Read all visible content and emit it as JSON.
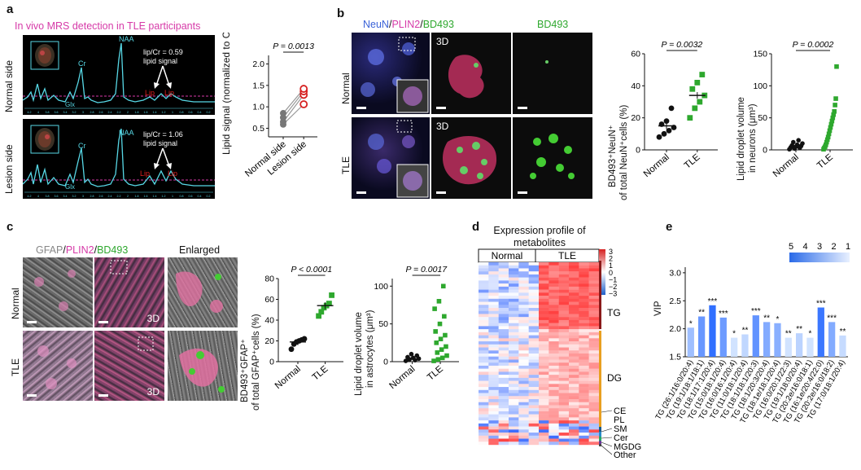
{
  "panel_labels": {
    "a": "a",
    "b": "b",
    "c": "c",
    "d": "d",
    "e": "e"
  },
  "colors": {
    "magenta": "#d63aa8",
    "green": "#2ea82e",
    "blue": "#3a62d8",
    "red": "#d81c1c",
    "cyan": "#57d8e6"
  },
  "panel_a": {
    "title": "In vivo MRS detection in TLE participants",
    "row_labels": [
      "Normal side",
      "Lesion side"
    ],
    "spectra": [
      {
        "ratio_text": "lip/Cr = 0.59",
        "signal_text": "lipid signal",
        "peak_labels": [
          "NAA",
          "Cr",
          "Glx"
        ],
        "lip_labels": [
          "Lip",
          "Lip"
        ]
      },
      {
        "ratio_text": "lip/Cr = 1.06",
        "signal_text": "lipid signal",
        "peak_labels": [
          "NAA",
          "Cr",
          "Glx"
        ],
        "lip_labels": [
          "Lip",
          "Lip"
        ]
      }
    ],
    "ppm_ticks": [
      "4.2",
      "4",
      "3.8",
      "3.6",
      "3.4",
      "3.2",
      "3",
      "2.8",
      "2.6",
      "2.4",
      "2.2",
      "2",
      "1.8",
      "1.6",
      "1.4",
      "1.2",
      "1",
      "0.8",
      "0.6",
      "0.4",
      "0.2"
    ]
  },
  "panel_a_plot": {
    "ylabel": "Lipid signal (normalized to Cr)",
    "p_text": "P = 0.0013",
    "categories": [
      "Normal side",
      "Lesion side"
    ],
    "yticks": [
      "0.5",
      "1.0",
      "1.5",
      "2.0"
    ]
  },
  "panel_b": {
    "stain_labels": [
      "NeuN",
      "/",
      "PLIN2",
      "/",
      "BD493"
    ],
    "bd493_label": "BD493",
    "row_labels": [
      "Normal",
      "TLE"
    ],
    "tag_3d": "3D",
    "plot1": {
      "ylabel_l1": "BD493⁺NeuN⁺",
      "ylabel_l2": "of total NeuN⁺cells (%)",
      "p_text": "P = 0.0032",
      "categories": [
        "Normal",
        "TLE"
      ],
      "yticks": [
        "0",
        "20",
        "40",
        "60"
      ]
    },
    "plot2": {
      "ylabel_l1": "Lipid droplet volume",
      "ylabel_l2": "in neurons (μm³)",
      "p_text": "P = 0.0002",
      "categories": [
        "Normal",
        "TLE"
      ],
      "yticks": [
        "0",
        "50",
        "100",
        "150"
      ]
    }
  },
  "panel_c": {
    "stain_labels": [
      "GFAP",
      "/",
      "PLIN2",
      "/",
      "BD493"
    ],
    "enlarged_label": "Enlarged",
    "row_labels": [
      "Normal",
      "TLE"
    ],
    "tag_3d": "3D",
    "plot1": {
      "ylabel_l1": "BD493⁺GFAP⁺",
      "ylabel_l2": "of total GFAP⁺cells (%)",
      "p_text": "P < 0.0001",
      "categories": [
        "Normal",
        "TLE"
      ],
      "yticks": [
        "0",
        "20",
        "40",
        "60",
        "80"
      ]
    },
    "plot2": {
      "ylabel_l1": "Lipid droplet volume",
      "ylabel_l2": "in astrocytes (μm³)",
      "p_text": "P = 0.0017",
      "categories": [
        "Normal",
        "TLE"
      ],
      "yticks": [
        "0",
        "50",
        "100"
      ]
    }
  },
  "panel_d": {
    "title_l1": "Expression profile of",
    "title_l2": "metabolites",
    "group_labels": [
      "Normal",
      "TLE"
    ],
    "colorbar_ticks": [
      "3",
      "2",
      "1",
      "0",
      "−1",
      "−2",
      "−3"
    ],
    "class_labels": [
      "TG",
      "DG",
      "CE",
      "PL",
      "SM",
      "Cer",
      "MGDG",
      "Other"
    ]
  },
  "panel_e": {
    "ylabel": "VIP",
    "yticks": [
      "1.5",
      "2.0",
      "2.5",
      "3.0"
    ],
    "legend_ticks": [
      "5",
      "4",
      "3",
      "2",
      "1"
    ]
  },
  "chart_data": [
    {
      "id": "a-lipid-signal",
      "type": "scatter",
      "categories": [
        "Normal side",
        "Lesion side"
      ],
      "ylabel": "Lipid signal (normalized to Cr)",
      "ylim": [
        0.3,
        2.2
      ],
      "series": [
        {
          "values": [
            0.59,
            1.06
          ]
        },
        {
          "values": [
            0.65,
            1.28
          ]
        },
        {
          "values": [
            0.75,
            1.36
          ]
        },
        {
          "values": [
            0.85,
            1.42
          ]
        }
      ],
      "annotation": "P = 0.0013"
    },
    {
      "id": "b-bd493-neun",
      "type": "scatter",
      "categories": [
        "Normal",
        "TLE"
      ],
      "ylabel": "BD493⁺NeuN⁺ of total NeuN⁺cells (%)",
      "ylim": [
        0,
        60
      ],
      "series": [
        {
          "name": "Normal",
          "values": [
            8,
            10,
            12,
            14,
            16,
            18,
            26
          ]
        },
        {
          "name": "TLE",
          "values": [
            20,
            26,
            30,
            34,
            38,
            42,
            47
          ]
        }
      ],
      "mean": [
        15,
        34
      ],
      "annotation": "P = 0.0032"
    },
    {
      "id": "b-ld-volume-neurons",
      "type": "scatter",
      "categories": [
        "Normal",
        "TLE"
      ],
      "ylabel": "Lipid droplet volume in neurons (μm³)",
      "ylim": [
        0,
        150
      ],
      "series": [
        {
          "name": "Normal",
          "values": [
            1,
            2,
            3,
            4,
            5,
            6,
            7,
            8,
            10,
            12,
            15
          ]
        },
        {
          "name": "TLE",
          "values": [
            1,
            3,
            5,
            8,
            12,
            16,
            20,
            25,
            30,
            35,
            40,
            45,
            50,
            55,
            60,
            70,
            80,
            130
          ]
        }
      ],
      "annotation": "P = 0.0002"
    },
    {
      "id": "c-bd493-gfap",
      "type": "scatter",
      "categories": [
        "Normal",
        "TLE"
      ],
      "ylabel": "BD493⁺GFAP⁺ of total GFAP⁺cells (%)",
      "ylim": [
        0,
        80
      ],
      "series": [
        {
          "name": "Normal",
          "values": [
            12,
            17,
            19,
            20,
            21,
            22
          ]
        },
        {
          "name": "TLE",
          "values": [
            44,
            48,
            52,
            54,
            56,
            64
          ]
        }
      ],
      "mean": [
        19,
        54
      ],
      "annotation": "P < 0.0001"
    },
    {
      "id": "c-ld-volume-astrocytes",
      "type": "scatter",
      "categories": [
        "Normal",
        "TLE"
      ],
      "ylabel": "Lipid droplet volume in astrocytes (μm³)",
      "ylim": [
        0,
        110
      ],
      "series": [
        {
          "name": "Normal",
          "values": [
            1,
            2,
            3,
            4,
            5,
            6,
            8,
            10
          ]
        },
        {
          "name": "TLE",
          "values": [
            1,
            3,
            5,
            8,
            12,
            16,
            20,
            25,
            30,
            35,
            40,
            50,
            60,
            70,
            80,
            100
          ]
        }
      ],
      "annotation": "P = 0.0017"
    },
    {
      "id": "e-vip",
      "type": "bar",
      "ylabel": "VIP",
      "ylim": [
        1.5,
        3.1
      ],
      "categories": [
        "TG (26:1/16:0/20:4)",
        "TG (19:1/18:1/18:1)",
        "TG (18:1/17:1/20:4)",
        "TG (15:0/18:1/20:4)",
        "TG (16:0/16:1/20:4)",
        "TG (11:0/18:1/20:4)",
        "TG (18:1/18:1/20:3)",
        "TG (18:1/20:3/20:4)",
        "TG (18:1e/18:1/20:4)",
        "TG (16:0/20:1/22:3)",
        "TG (19:1/18:0/20:4)",
        "TG (20:2e/16:0/18:1)",
        "TG (16:1e/20:4/22:0)",
        "TG (20:2e/16:0/18:2)",
        "TG (17:0/18:1/20:4)"
      ],
      "values": [
        2.02,
        2.22,
        2.42,
        2.2,
        1.84,
        1.9,
        2.24,
        2.12,
        2.1,
        1.84,
        1.92,
        1.84,
        2.38,
        2.12,
        1.88
      ],
      "significance": [
        "*",
        "**",
        "***",
        "***",
        "*",
        "**",
        "***",
        "**",
        "*",
        "**",
        "**",
        "*",
        "***",
        "***",
        "**"
      ]
    }
  ]
}
